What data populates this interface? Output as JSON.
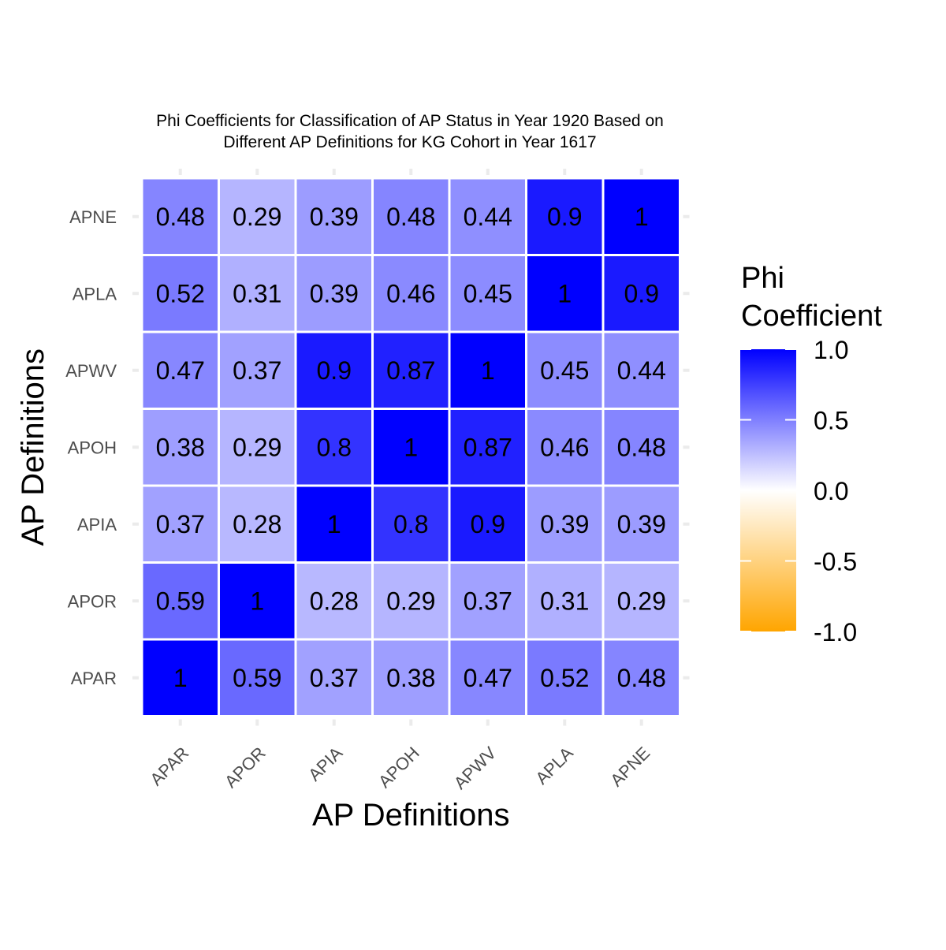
{
  "chart_data": {
    "type": "heatmap",
    "title": "Phi Coefficients for Classification of AP Status in Year 1920 Based on\nDifferent AP Definitions for KG Cohort in Year 1617",
    "xlabel": "AP Definitions",
    "ylabel": "AP Definitions",
    "x_categories": [
      "APAR",
      "APOR",
      "APIA",
      "APOH",
      "APWV",
      "APLA",
      "APNE"
    ],
    "y_categories": [
      "APAR",
      "APOR",
      "APIA",
      "APOH",
      "APWV",
      "APLA",
      "APNE"
    ],
    "values": [
      [
        1,
        0.59,
        0.37,
        0.38,
        0.47,
        0.52,
        0.48
      ],
      [
        0.59,
        1,
        0.28,
        0.29,
        0.37,
        0.31,
        0.29
      ],
      [
        0.37,
        0.28,
        1,
        0.8,
        0.9,
        0.39,
        0.39
      ],
      [
        0.38,
        0.29,
        0.8,
        1,
        0.87,
        0.46,
        0.48
      ],
      [
        0.47,
        0.37,
        0.9,
        0.87,
        1,
        0.45,
        0.44
      ],
      [
        0.52,
        0.31,
        0.39,
        0.46,
        0.45,
        1,
        0.9
      ],
      [
        0.48,
        0.29,
        0.39,
        0.48,
        0.44,
        0.9,
        1
      ]
    ],
    "value_labels": [
      [
        "1",
        "0.59",
        "0.37",
        "0.38",
        "0.47",
        "0.52",
        "0.48"
      ],
      [
        "0.59",
        "1",
        "0.28",
        "0.29",
        "0.37",
        "0.31",
        "0.29"
      ],
      [
        "0.37",
        "0.28",
        "1",
        "0.8",
        "0.9",
        "0.39",
        "0.39"
      ],
      [
        "0.38",
        "0.29",
        "0.8",
        "1",
        "0.87",
        "0.46",
        "0.48"
      ],
      [
        "0.47",
        "0.37",
        "0.9",
        "0.87",
        "1",
        "0.45",
        "0.44"
      ],
      [
        "0.52",
        "0.31",
        "0.39",
        "0.46",
        "0.45",
        "1",
        "0.9"
      ],
      [
        "0.48",
        "0.29",
        "0.39",
        "0.48",
        "0.44",
        "0.9",
        "1"
      ]
    ],
    "legend": {
      "title": "Phi\nCoefficient",
      "range": [
        -1,
        1
      ],
      "ticks": [
        "1.0",
        "0.5",
        "0.0",
        "-0.5",
        "-1.0"
      ],
      "tick_values": [
        1,
        0.5,
        0,
        -0.5,
        -1
      ],
      "placement": "right"
    },
    "colors": {
      "low": "#FFA500",
      "mid": "#FFFFFF",
      "high": "#0000FF"
    },
    "grid": true
  }
}
